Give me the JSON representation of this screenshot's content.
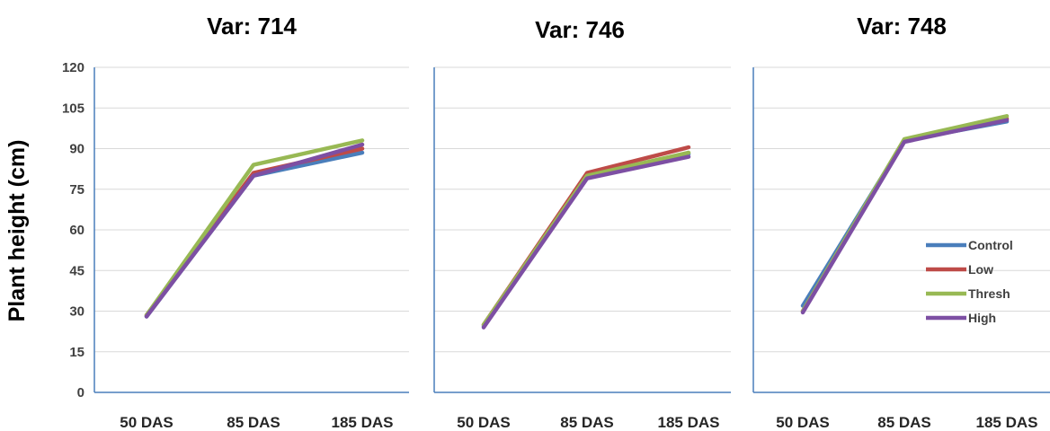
{
  "chart_data": {
    "type": "line",
    "ylabel": "Plant height (cm)",
    "ylim": [
      0,
      120
    ],
    "yticks": [
      "0",
      "15",
      "30",
      "45",
      "60",
      "75",
      "90",
      "105",
      "120"
    ],
    "grid": true,
    "legend_placement": "lower-right of third panel",
    "colors": {
      "Control": "#4a7ebb",
      "Low": "#be4b48",
      "Thresh": "#98b954",
      "High": "#7d4fa3"
    },
    "panels": [
      {
        "title": "Var: 714",
        "categories": [
          "50 DAS",
          "85 DAS",
          "185 DAS"
        ],
        "series": [
          {
            "name": "Control",
            "values": [
              28,
              80,
              88.5
            ]
          },
          {
            "name": "Low",
            "values": [
              28.5,
              81,
              90
            ]
          },
          {
            "name": "Thresh",
            "values": [
              28.5,
              84,
              93
            ]
          },
          {
            "name": "High",
            "values": [
              28,
              80,
              91.5
            ]
          }
        ]
      },
      {
        "title": "Var: 746",
        "categories": [
          "50 DAS",
          "85 DAS",
          "185 DAS"
        ],
        "series": [
          {
            "name": "Control",
            "values": [
              24.5,
              80,
              88
            ]
          },
          {
            "name": "Low",
            "values": [
              25,
              81,
              90.5
            ]
          },
          {
            "name": "Thresh",
            "values": [
              25,
              80,
              88.5
            ]
          },
          {
            "name": "High",
            "values": [
              24,
              79,
              87
            ]
          }
        ]
      },
      {
        "title": "Var: 748",
        "categories": [
          "50 DAS",
          "85 DAS",
          "185 DAS"
        ],
        "series": [
          {
            "name": "Control",
            "values": [
              32,
              93,
              100
            ]
          },
          {
            "name": "Low",
            "values": [
              30,
              93,
              101
            ]
          },
          {
            "name": "Thresh",
            "values": [
              30,
              93.5,
              102
            ]
          },
          {
            "name": "High",
            "values": [
              29.5,
              92.5,
              100.5
            ]
          }
        ]
      }
    ],
    "legend": [
      "Control",
      "Low",
      "Thresh",
      "High"
    ]
  }
}
